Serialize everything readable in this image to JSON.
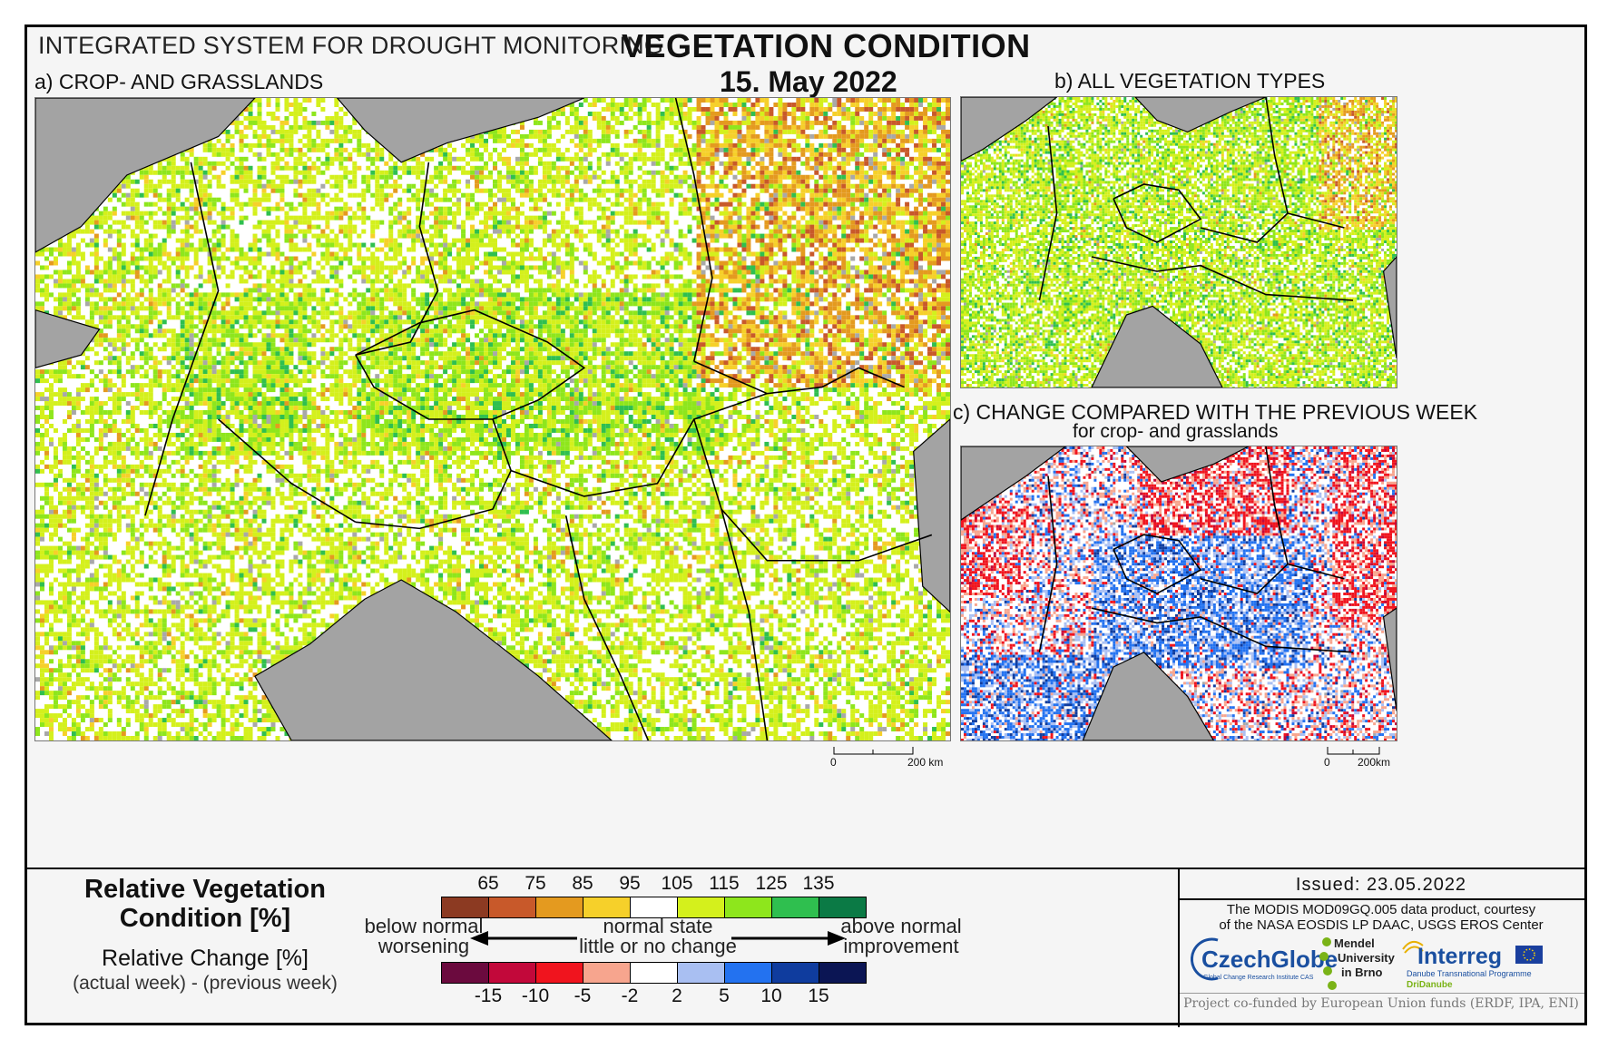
{
  "header": {
    "system_title": "INTEGRATED SYSTEM FOR DROUGHT MONITORING",
    "title": "VEGETATION CONDITION",
    "date": "15. May 2022"
  },
  "panels": {
    "a": {
      "label": "a) CROP- AND GRASSLANDS",
      "scale_zero": "0",
      "scale_label": "200 km"
    },
    "b": {
      "label": "b) ALL VEGETATION TYPES"
    },
    "c": {
      "label": "c) CHANGE COMPARED WITH THE PREVIOUS WEEK",
      "sublabel": "for crop- and grasslands",
      "scale_zero": "0",
      "scale_label": "200km"
    }
  },
  "legend": {
    "rvc_title_line1": "Relative Vegetation",
    "rvc_title_line2": "Condition [%]",
    "rc_title": "Relative Change [%]",
    "rc_subtitle": "(actual week) - (previous week)",
    "condition_ticks": [
      "65",
      "75",
      "85",
      "95",
      "105",
      "115",
      "125",
      "135"
    ],
    "condition_colors": [
      "#8c3a22",
      "#c8592a",
      "#e49a1f",
      "#f6d02a",
      "#ffffff",
      "#d4f01c",
      "#8ee61c",
      "#2fbf4f",
      "#0b7a45"
    ],
    "change_ticks": [
      "-15",
      "-10",
      "-5",
      "-2",
      "2",
      "5",
      "10",
      "15"
    ],
    "change_colors": [
      "#6b0a3e",
      "#c2083a",
      "#f0141e",
      "#f7a58e",
      "#ffffff",
      "#a9bff2",
      "#2372f0",
      "#0f3c9e",
      "#0b1554"
    ],
    "left_text_1": "below normal",
    "left_text_2": "worsening",
    "mid_text_1": "normal state",
    "mid_text_2": "little or no change",
    "right_text_1": "above normal",
    "right_text_2": "improvement"
  },
  "info": {
    "issued": "Issued: 23.05.2022",
    "credit_line1": "The MODIS MOD09GQ.005 data product, courtesy",
    "credit_line2": "of the NASA EOSDIS LP DAAC, USGS EROS Center",
    "logo_czechglobe": "CzechGlobe",
    "logo_czechglobe_sub": "Global Change Research Institute CAS",
    "logo_mendel_1": "Mendel",
    "logo_mendel_2": "University",
    "logo_mendel_3": "in Brno",
    "logo_interreg": "Interreg",
    "logo_interreg_sub": "Danube Transnational Programme",
    "logo_dri": "DriDanube",
    "funded": "Project co-funded by European Union funds (ERDF, IPA, ENI)"
  },
  "map_colors": {
    "water": "#a3a3a3",
    "land_white": "#ffffff",
    "border": "#000000"
  }
}
